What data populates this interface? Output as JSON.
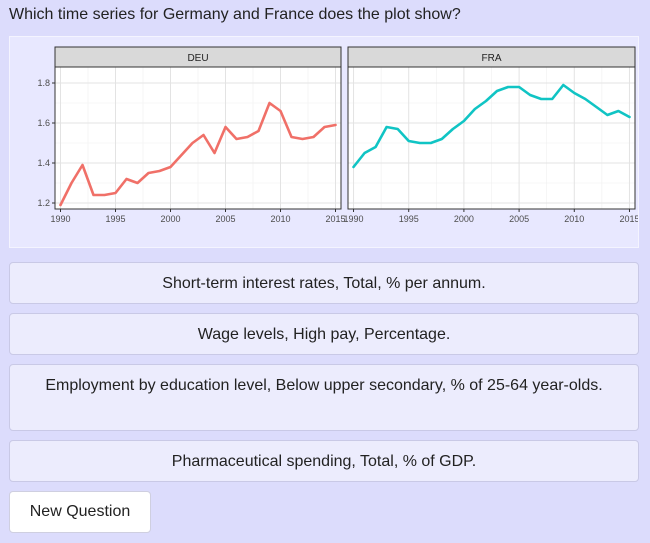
{
  "question": "Which time series for Germany and France does the plot show?",
  "options": [
    "Short-term interest rates, Total, % per annum.",
    "Wage levels, High pay, Percentage.",
    "Employment by education level, Below upper secondary, % of 25-64 year-olds.",
    "Pharmaceutical spending, Total, % of GDP."
  ],
  "new_question_label": "New Question",
  "colors": {
    "deu": "#f07068",
    "fra": "#10c4c4"
  },
  "chart_data": {
    "type": "line",
    "facets": [
      "DEU",
      "FRA"
    ],
    "ylim": [
      1.17,
      1.88
    ],
    "xlim": [
      1989.5,
      2015.5
    ],
    "y_ticks": [
      1.2,
      1.4,
      1.6,
      1.8
    ],
    "y_tick_labels": [
      "1.2",
      "1.4",
      "1.6",
      "1.8"
    ],
    "x_ticks": [
      1990,
      1995,
      2000,
      2005,
      2010,
      2015
    ],
    "x_tick_labels": [
      "1990",
      "1995",
      "2000",
      "2005",
      "2010",
      "2015"
    ],
    "grid": true,
    "series": [
      {
        "facet": "DEU",
        "x": [
          1990,
          1991,
          1992,
          1993,
          1994,
          1995,
          1996,
          1997,
          1998,
          1999,
          2000,
          2001,
          2002,
          2003,
          2004,
          2005,
          2006,
          2007,
          2008,
          2009,
          2010,
          2011,
          2012,
          2013,
          2014,
          2015
        ],
        "values": [
          1.19,
          1.3,
          1.39,
          1.24,
          1.24,
          1.25,
          1.32,
          1.3,
          1.35,
          1.36,
          1.38,
          1.44,
          1.5,
          1.54,
          1.45,
          1.58,
          1.52,
          1.53,
          1.56,
          1.7,
          1.66,
          1.53,
          1.52,
          1.53,
          1.58,
          1.59
        ]
      },
      {
        "facet": "FRA",
        "x": [
          1990,
          1991,
          1992,
          1993,
          1994,
          1995,
          1996,
          1997,
          1998,
          1999,
          2000,
          2001,
          2002,
          2003,
          2004,
          2005,
          2006,
          2007,
          2008,
          2009,
          2010,
          2011,
          2012,
          2013,
          2014,
          2015
        ],
        "values": [
          1.38,
          1.45,
          1.48,
          1.58,
          1.57,
          1.51,
          1.5,
          1.5,
          1.52,
          1.57,
          1.61,
          1.67,
          1.71,
          1.76,
          1.78,
          1.78,
          1.74,
          1.72,
          1.72,
          1.79,
          1.75,
          1.72,
          1.68,
          1.64,
          1.66,
          1.63
        ]
      }
    ]
  }
}
